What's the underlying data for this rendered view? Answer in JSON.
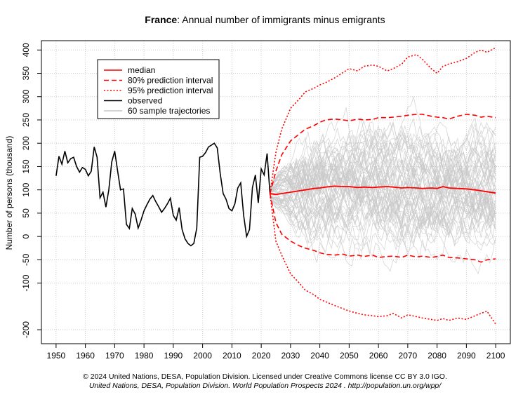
{
  "chart_data": {
    "type": "line",
    "title_country": "France",
    "title_rest": ": Annual number of immigrants minus emigrants",
    "ylabel": "Number of persons (thousand)",
    "xlim": [
      1945,
      2105
    ],
    "ylim": [
      -230,
      420
    ],
    "x_ticks": [
      1950,
      1960,
      1970,
      1980,
      1990,
      2000,
      2010,
      2020,
      2030,
      2040,
      2050,
      2060,
      2070,
      2080,
      2090,
      2100
    ],
    "y_ticks": [
      -200,
      -100,
      -50,
      0,
      50,
      100,
      150,
      200,
      250,
      300,
      350,
      400
    ],
    "legend": [
      {
        "label": "median",
        "color": "#ff0000",
        "style": "solid"
      },
      {
        "label": "80% prediction interval",
        "color": "#ff0000",
        "style": "dashed"
      },
      {
        "label": "95% prediction interval",
        "color": "#ff0000",
        "style": "dotted"
      },
      {
        "label": "observed",
        "color": "#000000",
        "style": "solid"
      },
      {
        "label": "60 sample trajectories",
        "color": "#bbbbbb",
        "style": "solid"
      }
    ],
    "observed": {
      "x": [
        1950,
        1951,
        1952,
        1953,
        1954,
        1955,
        1956,
        1957,
        1958,
        1959,
        1960,
        1961,
        1962,
        1963,
        1964,
        1965,
        1966,
        1967,
        1968,
        1969,
        1970,
        1971,
        1972,
        1973,
        1974,
        1975,
        1976,
        1977,
        1978,
        1979,
        1980,
        1981,
        1982,
        1983,
        1984,
        1985,
        1986,
        1987,
        1988,
        1989,
        1990,
        1991,
        1992,
        1993,
        1994,
        1995,
        1996,
        1997,
        1998,
        1999,
        2000,
        2001,
        2002,
        2003,
        2004,
        2005,
        2006,
        2007,
        2008,
        2009,
        2010,
        2011,
        2012,
        2013,
        2014,
        2015,
        2016,
        2017,
        2018,
        2019,
        2020,
        2021,
        2022,
        2023
      ],
      "y": [
        130,
        172,
        155,
        183,
        158,
        167,
        170,
        150,
        138,
        148,
        144,
        130,
        140,
        192,
        170,
        83,
        95,
        63,
        100,
        160,
        183,
        140,
        100,
        102,
        26,
        17,
        60,
        48,
        18,
        35,
        55,
        68,
        80,
        88,
        75,
        64,
        52,
        60,
        70,
        82,
        45,
        35,
        62,
        15,
        -5,
        -15,
        -20,
        -15,
        18,
        170,
        172,
        180,
        192,
        196,
        200,
        190,
        135,
        92,
        80,
        60,
        55,
        70,
        104,
        115,
        45,
        0,
        15,
        105,
        132,
        72,
        145,
        132,
        178,
        92
      ],
      "color": "#000000"
    },
    "median": {
      "x": [
        2023,
        2025,
        2027,
        2030,
        2033,
        2035,
        2038,
        2040,
        2042,
        2045,
        2048,
        2050,
        2053,
        2055,
        2058,
        2060,
        2063,
        2065,
        2068,
        2070,
        2073,
        2075,
        2078,
        2080,
        2082,
        2084,
        2087,
        2090,
        2093,
        2095,
        2097,
        2100
      ],
      "y": [
        92,
        90,
        92,
        95,
        98,
        100,
        103,
        104,
        106,
        108,
        107,
        107,
        105,
        106,
        105,
        106,
        107,
        106,
        104,
        105,
        104,
        103,
        104,
        103,
        107,
        104,
        103,
        102,
        100,
        98,
        96,
        93
      ],
      "color": "#ff0000"
    },
    "pi80_upper": {
      "x": [
        2023,
        2025,
        2027,
        2030,
        2033,
        2035,
        2038,
        2040,
        2042,
        2045,
        2048,
        2050,
        2053,
        2055,
        2058,
        2060,
        2063,
        2065,
        2068,
        2070,
        2073,
        2075,
        2078,
        2080,
        2082,
        2084,
        2087,
        2090,
        2093,
        2095,
        2097,
        2100
      ],
      "y": [
        92,
        140,
        175,
        205,
        220,
        230,
        238,
        245,
        250,
        252,
        250,
        248,
        252,
        250,
        251,
        255,
        255,
        256,
        258,
        260,
        262,
        262,
        258,
        256,
        255,
        252,
        258,
        262,
        260,
        256,
        258,
        255
      ],
      "color": "#ff0000"
    },
    "pi80_lower": {
      "x": [
        2023,
        2025,
        2027,
        2030,
        2033,
        2035,
        2038,
        2040,
        2042,
        2045,
        2048,
        2050,
        2053,
        2055,
        2058,
        2060,
        2063,
        2065,
        2068,
        2070,
        2073,
        2075,
        2078,
        2080,
        2082,
        2084,
        2087,
        2090,
        2093,
        2095,
        2097,
        2100
      ],
      "y": [
        92,
        30,
        5,
        -10,
        -20,
        -25,
        -30,
        -35,
        -38,
        -40,
        -38,
        -42,
        -40,
        -43,
        -40,
        -45,
        -43,
        -42,
        -45,
        -40,
        -44,
        -42,
        -45,
        -43,
        -40,
        -45,
        -46,
        -48,
        -50,
        -55,
        -50,
        -48
      ],
      "color": "#ff0000"
    },
    "pi95_upper": {
      "x": [
        2023,
        2025,
        2027,
        2030,
        2033,
        2035,
        2038,
        2040,
        2042,
        2045,
        2048,
        2050,
        2053,
        2055,
        2058,
        2060,
        2063,
        2065,
        2068,
        2070,
        2073,
        2075,
        2078,
        2080,
        2082,
        2084,
        2087,
        2090,
        2093,
        2095,
        2097,
        2100
      ],
      "y": [
        92,
        180,
        230,
        275,
        295,
        310,
        318,
        325,
        330,
        340,
        352,
        360,
        355,
        365,
        368,
        365,
        355,
        360,
        370,
        385,
        390,
        380,
        360,
        350,
        365,
        370,
        375,
        382,
        395,
        400,
        395,
        405
      ],
      "color": "#ff0000"
    },
    "pi95_lower": {
      "x": [
        2023,
        2025,
        2027,
        2030,
        2033,
        2035,
        2038,
        2040,
        2042,
        2045,
        2048,
        2050,
        2053,
        2055,
        2058,
        2060,
        2063,
        2065,
        2068,
        2070,
        2073,
        2075,
        2078,
        2080,
        2082,
        2084,
        2087,
        2090,
        2093,
        2095,
        2097,
        2100
      ],
      "y": [
        92,
        -10,
        -40,
        -80,
        -100,
        -115,
        -125,
        -135,
        -140,
        -148,
        -155,
        -160,
        -165,
        -168,
        -170,
        -172,
        -170,
        -165,
        -175,
        -168,
        -172,
        -175,
        -178,
        -180,
        -176,
        -180,
        -175,
        -178,
        -170,
        -165,
        -160,
        -188
      ],
      "color": "#ff0000"
    },
    "trajectories": {
      "count": 60,
      "start_year": 2023,
      "end_year": 2100,
      "color": "#c8c8c8"
    }
  },
  "footer": {
    "line1": "© 2024 United Nations, DESA, Population Division. Licensed under Creative Commons license CC BY 3.0 IGO.",
    "line2": "United Nations, DESA, Population Division. World Population Prospects 2024 . http://population.un.org/wpp/"
  }
}
